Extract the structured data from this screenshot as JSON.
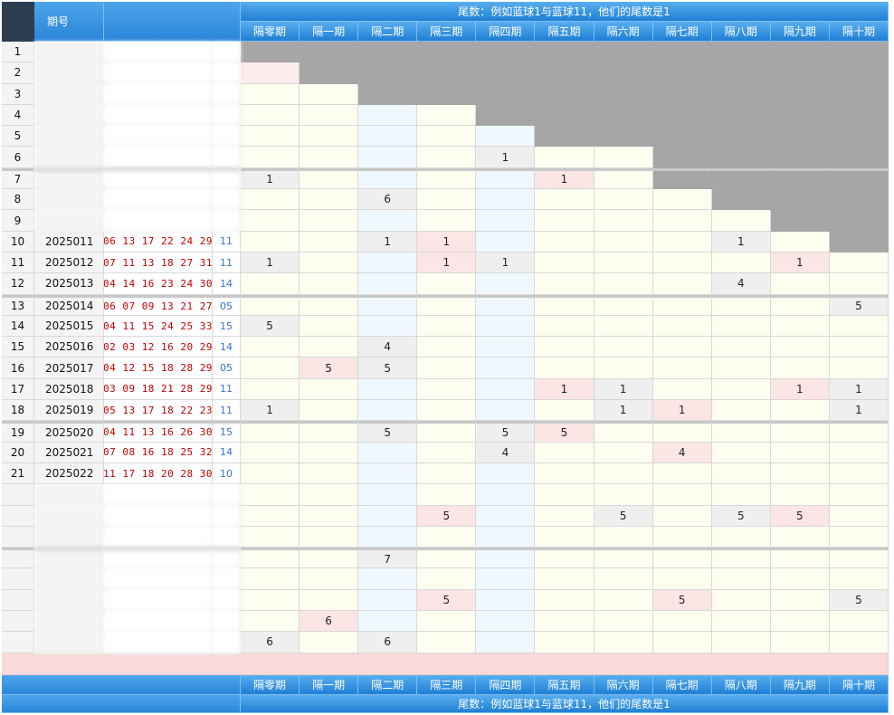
{
  "header": {
    "period_label_line1": "期号",
    "title": "尾数：例如蓝球1与蓝球11，他们的尾数是1",
    "gap_columns": [
      "隔零期",
      "隔一期",
      "隔二期",
      "隔三期",
      "隔四期",
      "隔五期",
      "隔六期",
      "隔七期",
      "隔八期",
      "隔九期",
      "隔十期"
    ]
  },
  "rows": [
    {
      "idx": "1",
      "period": "",
      "reds": "",
      "blue": "",
      "vals": [
        "",
        "",
        "",
        "",
        "",
        "",
        "",
        "",
        "",
        "",
        ""
      ]
    },
    {
      "idx": "2",
      "period": "",
      "reds": "",
      "blue": "",
      "vals": [
        "",
        "",
        "",
        "",
        "",
        "",
        "",
        "",
        "",
        "",
        ""
      ]
    },
    {
      "idx": "3",
      "period": "",
      "reds": "",
      "blue": "",
      "vals": [
        "",
        "",
        "",
        "",
        "",
        "",
        "",
        "",
        "",
        "",
        ""
      ]
    },
    {
      "idx": "4",
      "period": "",
      "reds": "",
      "blue": "",
      "vals": [
        "",
        "",
        "",
        "",
        "",
        "",
        "",
        "",
        "",
        "",
        ""
      ]
    },
    {
      "idx": "5",
      "period": "",
      "reds": "",
      "blue": "",
      "vals": [
        "",
        "",
        "",
        "",
        "",
        "",
        "",
        "",
        "",
        "",
        ""
      ]
    },
    {
      "idx": "6",
      "period": "",
      "reds": "",
      "blue": "",
      "vals": [
        "",
        "",
        "",
        "",
        "1",
        "",
        "",
        "",
        "",
        "",
        ""
      ]
    },
    {
      "idx": "7",
      "period": "",
      "reds": "",
      "blue": "",
      "vals": [
        "1",
        "",
        "",
        "",
        "",
        "1",
        "",
        "",
        "",
        "",
        ""
      ]
    },
    {
      "idx": "8",
      "period": "",
      "reds": "",
      "blue": "",
      "vals": [
        "",
        "",
        "6",
        "",
        "",
        "",
        "",
        "",
        "",
        "",
        ""
      ]
    },
    {
      "idx": "9",
      "period": "",
      "reds": "",
      "blue": "",
      "vals": [
        "",
        "",
        "",
        "",
        "",
        "",
        "",
        "",
        "",
        "",
        ""
      ]
    },
    {
      "idx": "10",
      "period": "2025011",
      "reds": "06 13 17 22 24 29",
      "blue": "11",
      "vals": [
        "",
        "",
        "1",
        "1",
        "",
        "",
        "",
        "",
        "1",
        "",
        ""
      ]
    },
    {
      "idx": "11",
      "period": "2025012",
      "reds": "07 11 13 18 27 31",
      "blue": "11",
      "vals": [
        "1",
        "",
        "",
        "1",
        "1",
        "",
        "",
        "",
        "",
        "1",
        ""
      ]
    },
    {
      "idx": "12",
      "period": "2025013",
      "reds": "04 14 16 23 24 30",
      "blue": "14",
      "vals": [
        "",
        "",
        "",
        "",
        "",
        "",
        "",
        "",
        "4",
        "",
        ""
      ]
    },
    {
      "idx": "13",
      "period": "2025014",
      "reds": "06 07 09 13 21 27",
      "blue": "05",
      "vals": [
        "",
        "",
        "",
        "",
        "",
        "",
        "",
        "",
        "",
        "",
        "5"
      ]
    },
    {
      "idx": "14",
      "period": "2025015",
      "reds": "04 11 15 24 25 33",
      "blue": "15",
      "vals": [
        "5",
        "",
        "",
        "",
        "",
        "",
        "",
        "",
        "",
        "",
        ""
      ]
    },
    {
      "idx": "15",
      "period": "2025016",
      "reds": "02 03 12 16 20 29",
      "blue": "14",
      "vals": [
        "",
        "",
        "4",
        "",
        "",
        "",
        "",
        "",
        "",
        "",
        ""
      ]
    },
    {
      "idx": "16",
      "period": "2025017",
      "reds": "04 12 15 18 28 29",
      "blue": "05",
      "vals": [
        "",
        "5",
        "5",
        "",
        "",
        "",
        "",
        "",
        "",
        "",
        ""
      ]
    },
    {
      "idx": "17",
      "period": "2025018",
      "reds": "03 09 18 21 28 29",
      "blue": "11",
      "vals": [
        "",
        "",
        "",
        "",
        "",
        "1",
        "1",
        "",
        "",
        "1",
        "1"
      ]
    },
    {
      "idx": "18",
      "period": "2025019",
      "reds": "05 13 17 18 22 23",
      "blue": "11",
      "vals": [
        "1",
        "",
        "",
        "",
        "",
        "",
        "1",
        "1",
        "",
        "",
        "1"
      ]
    },
    {
      "idx": "19",
      "period": "2025020",
      "reds": "04 11 13 16 26 30",
      "blue": "15",
      "vals": [
        "",
        "",
        "5",
        "",
        "5",
        "5",
        "",
        "",
        "",
        "",
        ""
      ]
    },
    {
      "idx": "20",
      "period": "2025021",
      "reds": "07 08 16 18 25 32",
      "blue": "14",
      "vals": [
        "",
        "",
        "",
        "",
        "4",
        "",
        "",
        "4",
        "",
        "",
        ""
      ]
    },
    {
      "idx": "21",
      "period": "2025022",
      "reds": "11 17 18 20 28 30",
      "blue": "10",
      "vals": [
        "",
        "",
        "",
        "",
        "",
        "",
        "",
        "",
        "",
        "",
        ""
      ]
    },
    {
      "idx": "",
      "period": "",
      "reds": "",
      "blue": "",
      "vals": [
        "",
        "",
        "",
        "",
        "",
        "",
        "",
        "",
        "",
        "",
        ""
      ]
    },
    {
      "idx": "",
      "period": "",
      "reds": "",
      "blue": "",
      "vals": [
        "",
        "",
        "",
        "5",
        "",
        "",
        "5",
        "",
        "5",
        "5",
        ""
      ]
    },
    {
      "idx": "",
      "period": "",
      "reds": "",
      "blue": "",
      "vals": [
        "",
        "",
        "",
        "",
        "",
        "",
        "",
        "",
        "",
        "",
        ""
      ]
    },
    {
      "idx": "",
      "period": "",
      "reds": "",
      "blue": "",
      "vals": [
        "",
        "",
        "7",
        "",
        "",
        "",
        "",
        "",
        "",
        "",
        ""
      ]
    },
    {
      "idx": "",
      "period": "",
      "reds": "",
      "blue": "",
      "vals": [
        "",
        "",
        "",
        "",
        "",
        "",
        "",
        "",
        "",
        "",
        ""
      ]
    },
    {
      "idx": "",
      "period": "",
      "reds": "",
      "blue": "",
      "vals": [
        "",
        "",
        "",
        "5",
        "",
        "",
        "",
        "5",
        "",
        "",
        "5"
      ]
    },
    {
      "idx": "",
      "period": "",
      "reds": "",
      "blue": "",
      "vals": [
        "",
        "6",
        "",
        "",
        "",
        "",
        "",
        "",
        "",
        "",
        ""
      ]
    },
    {
      "idx": "",
      "period": "",
      "reds": "",
      "blue": "",
      "vals": [
        "6",
        "",
        "6",
        "",
        "",
        "",
        "",
        "",
        "",
        "",
        ""
      ]
    }
  ]
}
